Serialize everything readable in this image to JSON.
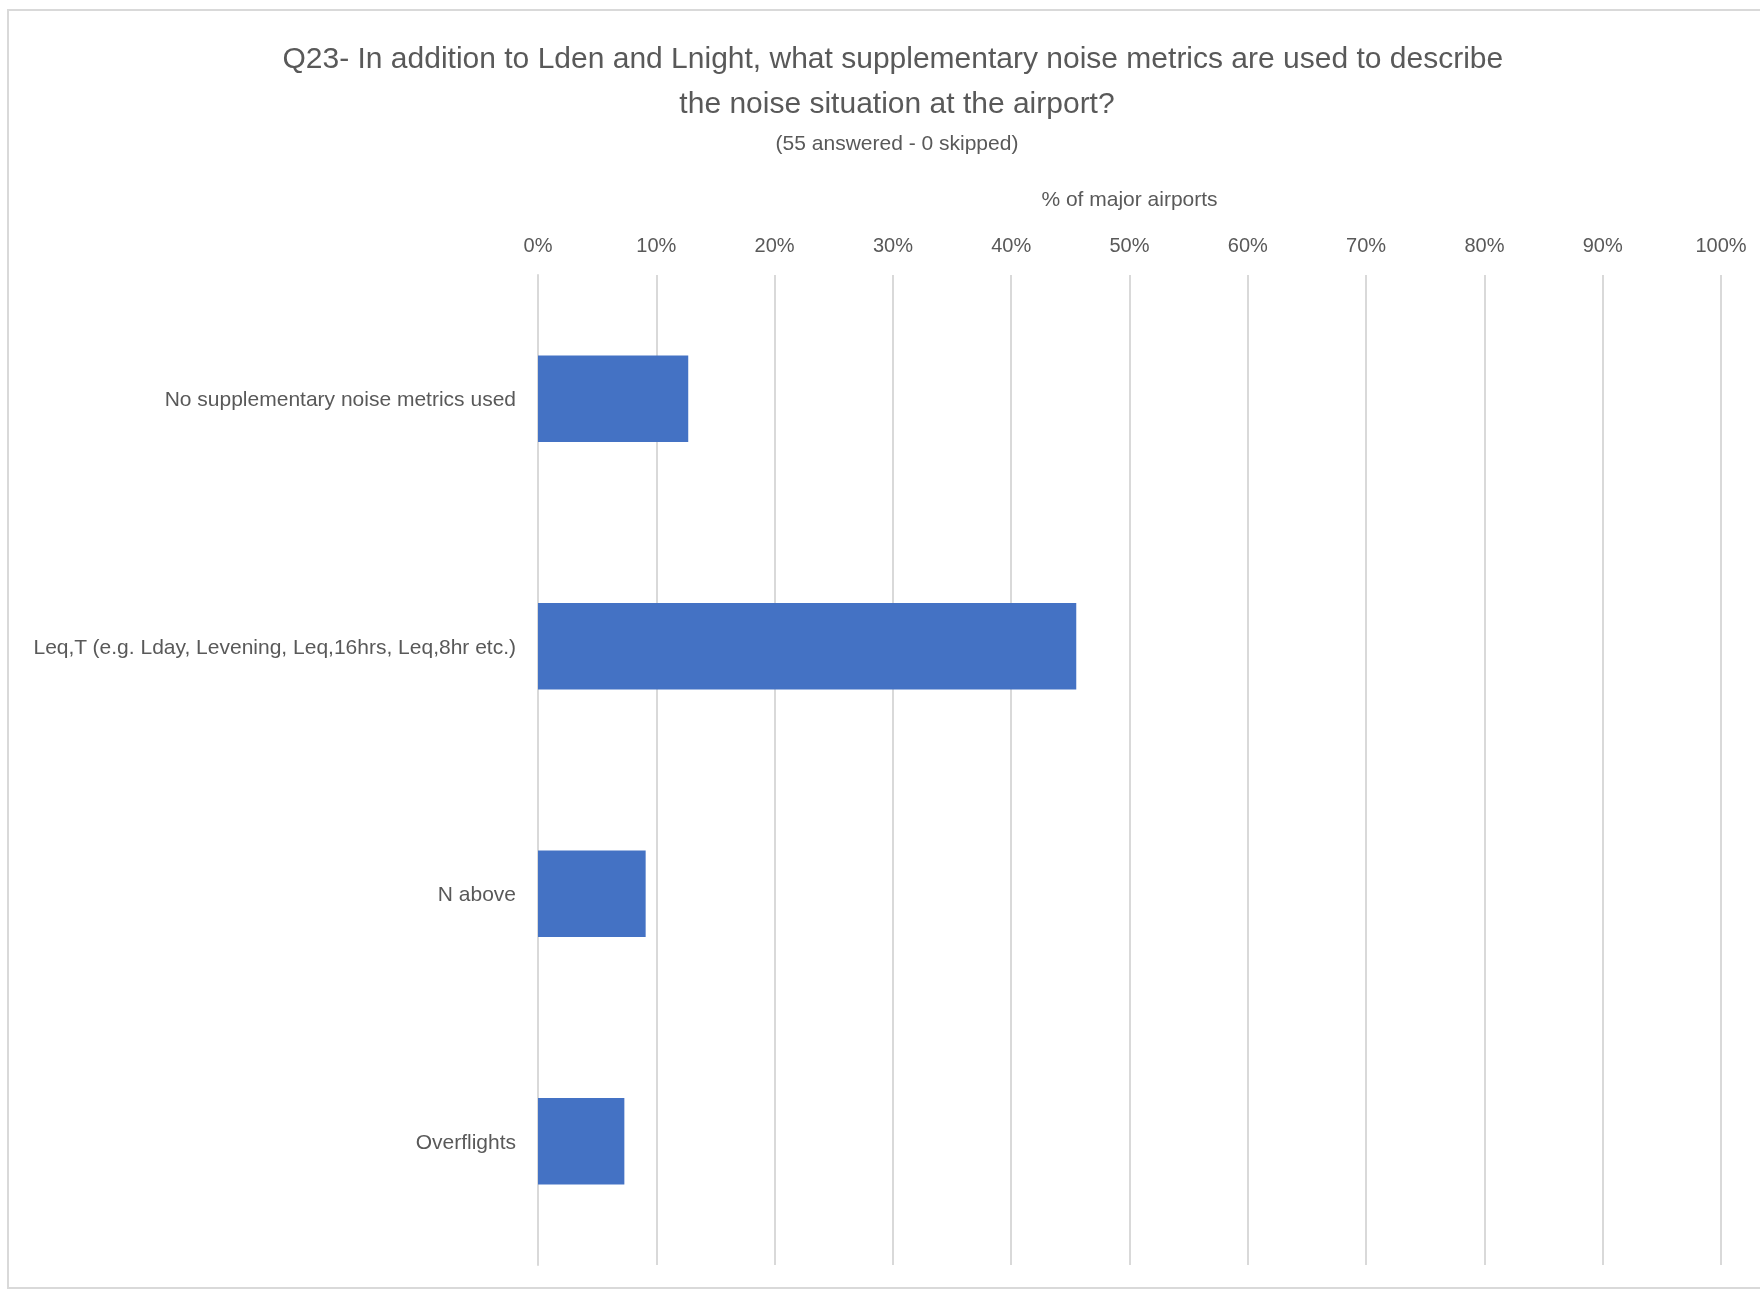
{
  "chart_data": {
    "type": "bar",
    "orientation": "horizontal",
    "title": "Q23- In addition to Lden and Lnight, what supplementary noise metrics are used to describe the noise situation at the airport?",
    "subtitle": "(55 answered - 0 skipped)",
    "xlabel": "% of major airports",
    "categories": [
      "No supplementary noise metrics used",
      "Leq,T (e.g. Lday, Levening, Leq,16hrs, Leq,8hr etc.)",
      "N above",
      "Overflights"
    ],
    "values": [
      12.7,
      45.5,
      9.1,
      7.3
    ],
    "color": "#4472c4",
    "xlim": [
      0,
      100
    ],
    "xticks": [
      {
        "value": 0,
        "label": "0%"
      },
      {
        "value": 10,
        "label": "10%"
      },
      {
        "value": 20,
        "label": "20%"
      },
      {
        "value": 30,
        "label": "30%"
      },
      {
        "value": 40,
        "label": "40%"
      },
      {
        "value": 50,
        "label": "50%"
      },
      {
        "value": 60,
        "label": "60%"
      },
      {
        "value": 70,
        "label": "70%"
      },
      {
        "value": 80,
        "label": "80%"
      },
      {
        "value": 90,
        "label": "90%"
      },
      {
        "value": 100,
        "label": "100%"
      }
    ],
    "grid": "x"
  }
}
